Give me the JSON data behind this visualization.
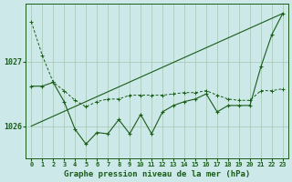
{
  "background_color": "#cce8e8",
  "grid_color": "#aaccbb",
  "line_color": "#1a5c1a",
  "x_labels": [
    "0",
    "1",
    "2",
    "3",
    "4",
    "5",
    "6",
    "7",
    "8",
    "9",
    "10",
    "11",
    "12",
    "13",
    "14",
    "15",
    "16",
    "17",
    "18",
    "19",
    "20",
    "21",
    "22",
    "23"
  ],
  "x_values": [
    0,
    1,
    2,
    3,
    4,
    5,
    6,
    7,
    8,
    9,
    10,
    11,
    12,
    13,
    14,
    15,
    16,
    17,
    18,
    19,
    20,
    21,
    22,
    23
  ],
  "line1_y": [
    1027.62,
    1027.1,
    1026.68,
    1026.55,
    1026.4,
    1026.3,
    1026.38,
    1026.42,
    1026.42,
    1026.48,
    1026.48,
    1026.48,
    1026.48,
    1026.5,
    1026.52,
    1026.52,
    1026.55,
    1026.48,
    1026.42,
    1026.4,
    1026.4,
    1026.55,
    1026.55,
    1026.58
  ],
  "line2_y": [
    1026.62,
    1026.62,
    1026.68,
    1026.38,
    1025.95,
    1025.72,
    1025.9,
    1025.88,
    1026.1,
    1025.88,
    1026.18,
    1025.88,
    1026.22,
    1026.32,
    1026.38,
    1026.42,
    1026.5,
    1026.22,
    1026.32,
    1026.32,
    1026.32,
    1026.92,
    1027.42,
    1027.75
  ],
  "line3_x": [
    0,
    23
  ],
  "line3_y": [
    1026.0,
    1027.75
  ],
  "ylabel_ticks": [
    1026,
    1027
  ],
  "ylim": [
    1025.5,
    1027.9
  ],
  "xlim": [
    -0.5,
    23.5
  ],
  "xlabel": "Graphe pression niveau de la mer (hPa)",
  "xlabel_fontsize": 6.5,
  "tick_fontsize": 5.0,
  "ytick_fontsize": 6.0
}
